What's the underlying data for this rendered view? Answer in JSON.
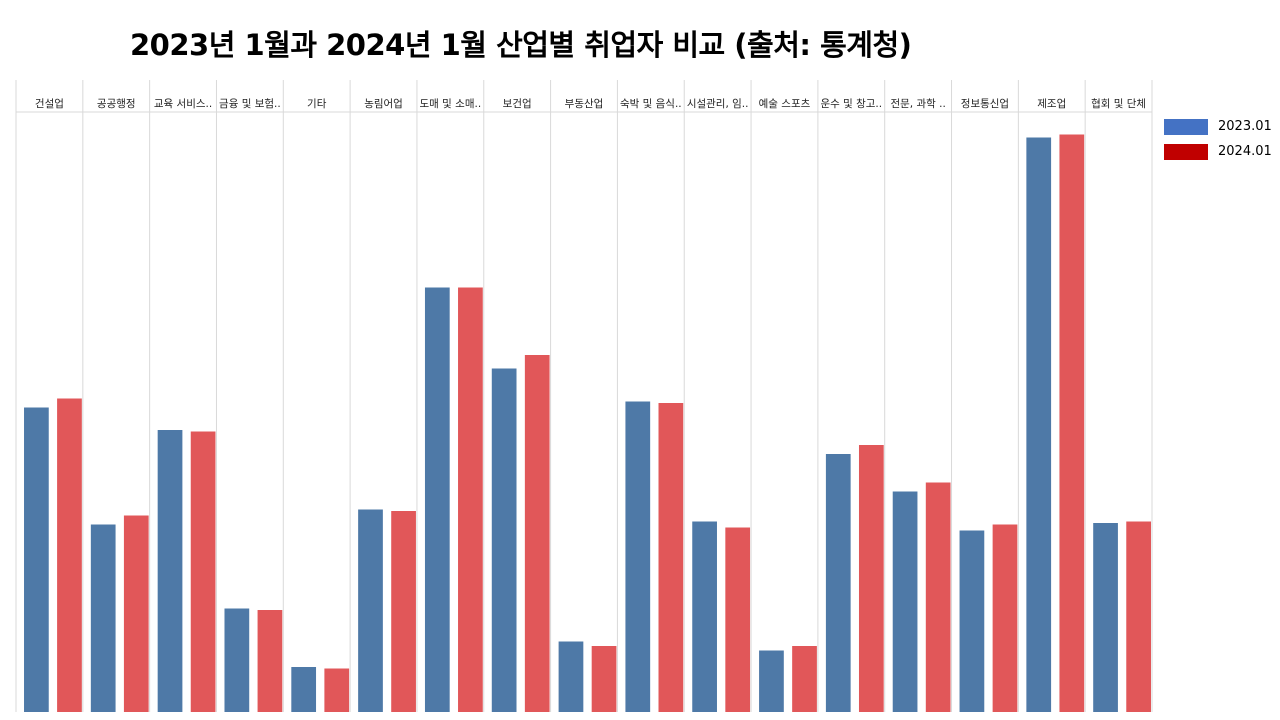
{
  "title": "2023년 1월과 2024년 1월 산업별 취업자 비교 (출처: 통계청)",
  "chart_data": {
    "type": "bar",
    "title": "2023년 1월과 2024년 1월 산업별 취업자 비교 (출처: 통계청)",
    "categories": [
      "건설업",
      "공공행정",
      "교육 서비스..",
      "금융 및 보험..",
      "기타",
      "농림어업",
      "도매 및 소매..",
      "보건업",
      "부동산업",
      "숙박 및 음식..",
      "시설관리, 임..",
      "예술 스포츠",
      "운수 및 창고..",
      "전문, 과학 ..",
      "정보통신업",
      "제조업",
      "협회 및 단체"
    ],
    "series": [
      {
        "name": "2023.01",
        "values": [
          2030,
          1250,
          1880,
          690,
          300,
          1350,
          2830,
          2290,
          470,
          2070,
          1270,
          410,
          1720,
          1470,
          1210,
          3830,
          1260
        ]
      },
      {
        "name": "2024.01",
        "values": [
          2090,
          1310,
          1870,
          680,
          290,
          1340,
          2830,
          2380,
          440,
          2060,
          1230,
          440,
          1780,
          1530,
          1250,
          3850,
          1270
        ]
      }
    ],
    "ylim": [
      0,
      4000
    ],
    "grid": true,
    "legend_position": "right",
    "colors": {
      "legend": [
        "#4472c4",
        "#c00000"
      ],
      "bars": [
        "#4e79a7",
        "#e15759"
      ],
      "separator": "#d9d9d9"
    }
  }
}
